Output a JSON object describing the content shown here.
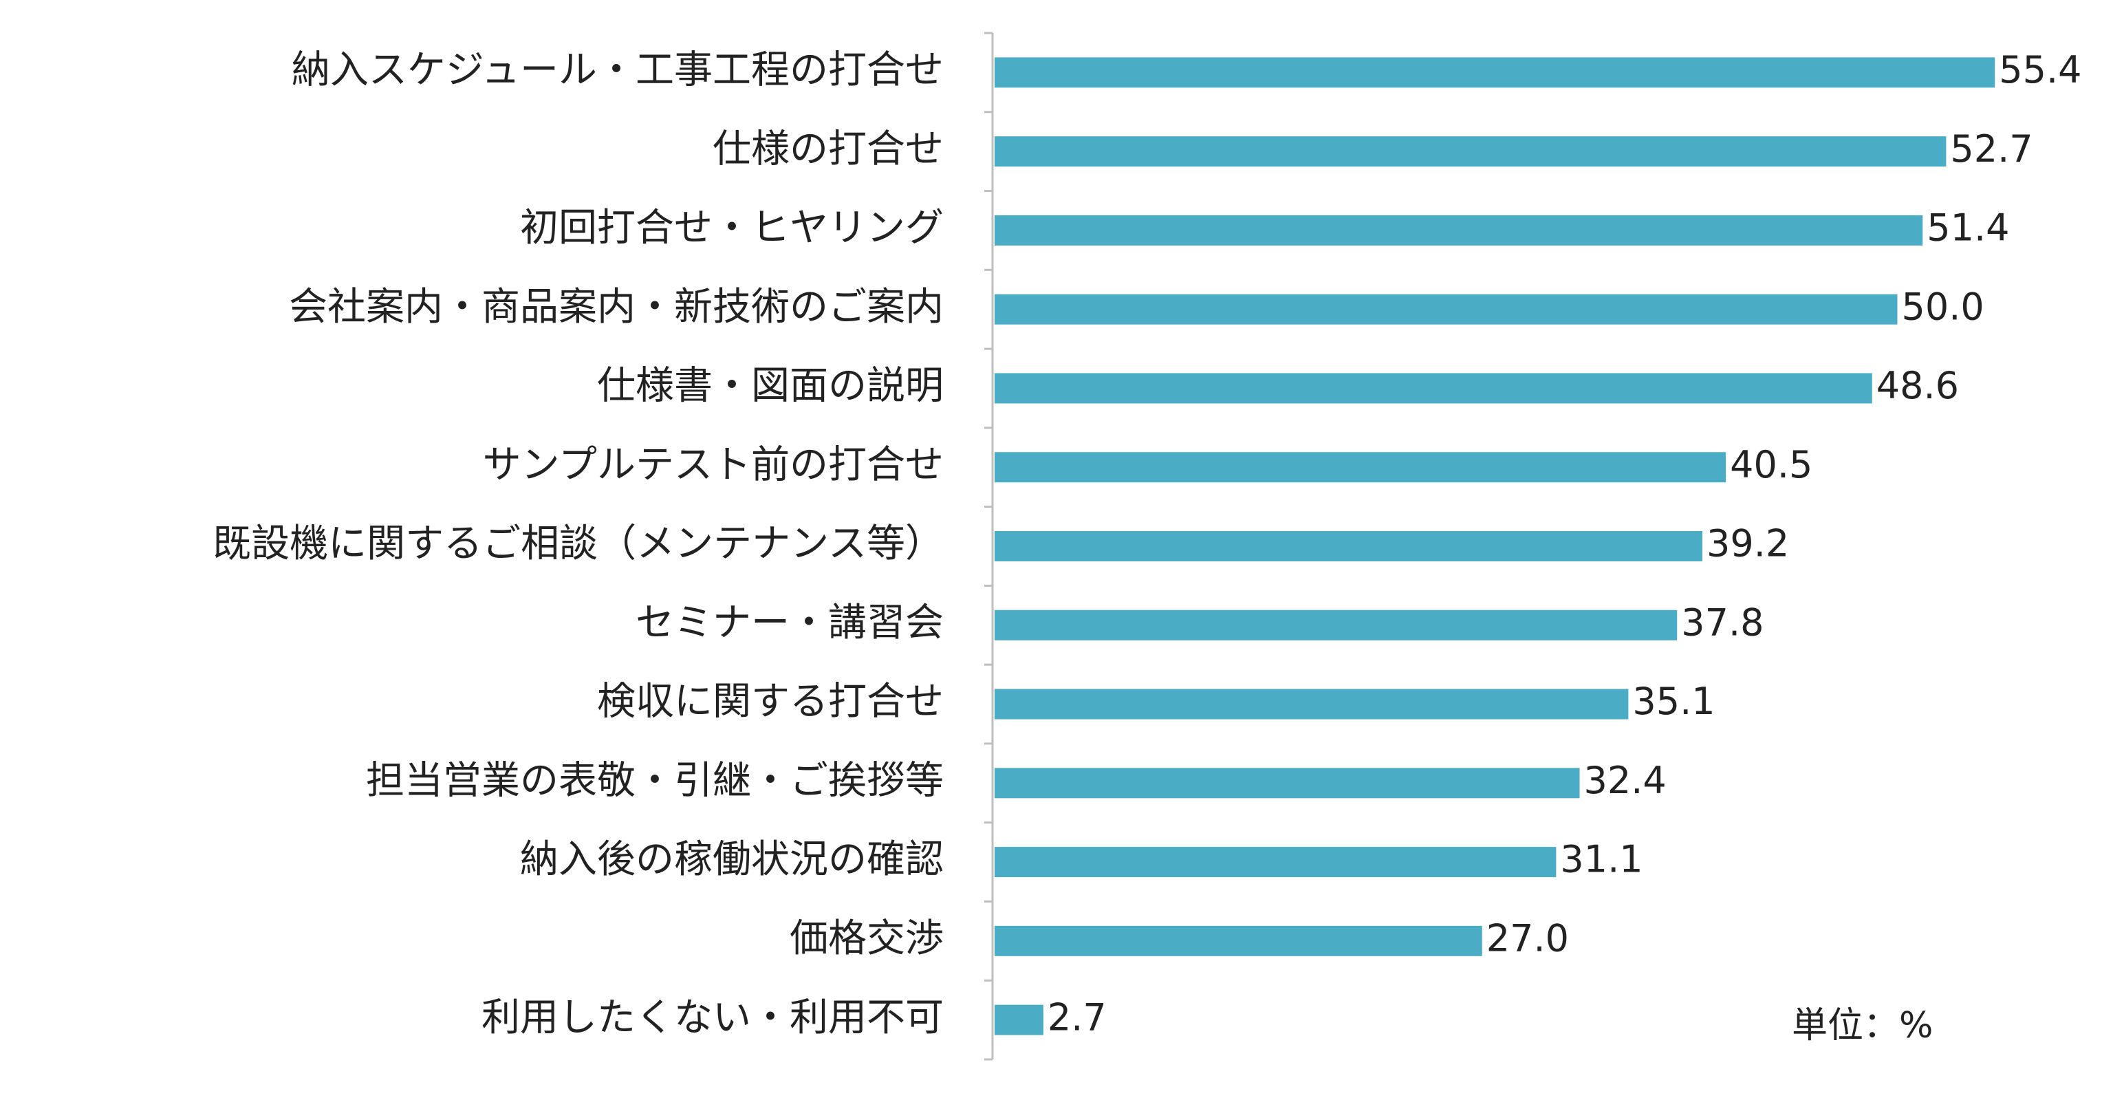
{
  "chart_data": {
    "type": "bar",
    "orientation": "horizontal",
    "categories": [
      "納入スケジュール・工事工程の打合せ",
      "仕様の打合せ",
      "初回打合せ・ヒヤリング",
      "会社案内・商品案内・新技術のご案内",
      "仕様書・図面の説明",
      "サンプルテスト前の打合せ",
      "既設機に関するご相談（メンテナンス等）",
      "セミナー・講習会",
      "検収に関する打合せ",
      "担当営業の表敬・引継・ご挨拶等",
      "納入後の稼働状況の確認",
      "価格交渉",
      "利用したくない・利用不可"
    ],
    "values": [
      55.4,
      52.7,
      51.4,
      50.0,
      48.6,
      40.5,
      39.2,
      37.8,
      35.1,
      32.4,
      31.1,
      27.0,
      2.7
    ],
    "value_labels": [
      "55.4",
      "52.7",
      "51.4",
      "50.0",
      "48.6",
      "40.5",
      "39.2",
      "37.8",
      "35.1",
      "32.4",
      "31.1",
      "27.0",
      "2.7"
    ],
    "unit_note": "単位：%",
    "xlim": [
      0,
      60
    ],
    "bar_color": "#4BACC6",
    "axis_color": "#BFBFBF",
    "grid": false,
    "legend": "none"
  }
}
